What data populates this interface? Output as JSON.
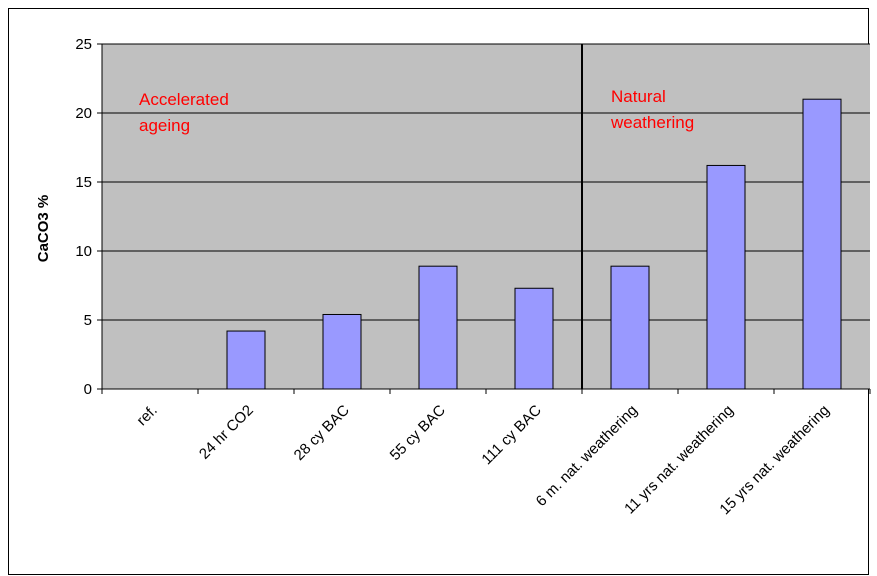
{
  "chart_data": {
    "type": "bar",
    "title": "",
    "xlabel": "",
    "ylabel": "CaCO3 %",
    "ylim": [
      0,
      25
    ],
    "yticks": [
      0,
      5,
      10,
      15,
      20,
      25
    ],
    "grid": true,
    "legend": "none",
    "categories": [
      "ref.",
      "24 hr CO2",
      "28 cy BAC",
      "55 cy BAC",
      "111 cy BAC",
      "6 m. nat. weathering",
      "11 yrs nat. weathering",
      "15 yrs nat. weathering"
    ],
    "values": [
      0,
      4.2,
      5.4,
      8.9,
      7.3,
      8.9,
      16.2,
      21.0
    ],
    "annotations": [
      {
        "text_lines": [
          "Accelerated",
          "ageing"
        ]
      },
      {
        "text_lines": [
          "Natural",
          "weathering"
        ]
      }
    ],
    "divider_between_categories": [
      4,
      5
    ]
  },
  "colors": {
    "plot_background": "#c0c0c0",
    "bar_fill": "#9999ff",
    "bar_stroke": "#000000",
    "gridline": "#000000",
    "annotation_text": "#ff0000"
  }
}
